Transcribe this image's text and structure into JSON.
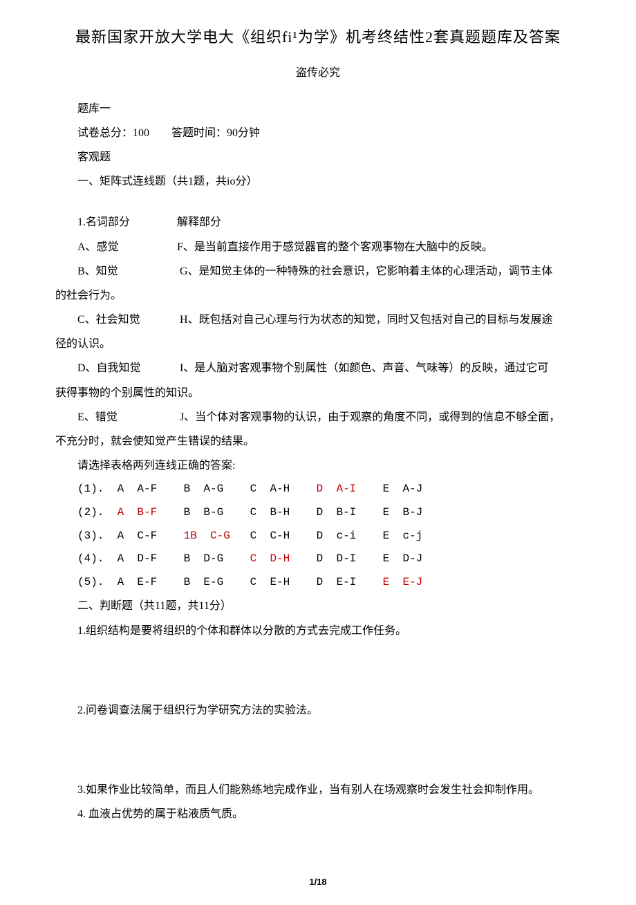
{
  "colors": {
    "text": "#000000",
    "background": "#ffffff",
    "answer_red": "#c00000"
  },
  "typography": {
    "body_font": "SimSun",
    "body_size_pt": 12,
    "title_size_pt": 16,
    "mono_font": "Courier New"
  },
  "page": {
    "number": "1/18"
  },
  "header": {
    "title": "最新国家开放大学电大《组织fi¹为学》机考终结性2套真题题库及答案",
    "subtitle": "盗传必究"
  },
  "meta": {
    "bank_label": "题库一",
    "score_line": "试卷总分：100　　答题时间：90分钟",
    "objective_label": "客观题"
  },
  "section1": {
    "heading": "一、矩阵式连线题（共1题，共io分）",
    "header_row": {
      "left": "1.名词部分",
      "right": "解释部分"
    },
    "rows": [
      {
        "left": "A、感觉",
        "right": "F、是当前直接作用于感觉器官的整个客观事物在大脑中的反映。"
      },
      {
        "left": "B、知觉",
        "right_first": "G、是知觉主体的一种特殊的社会意识，它影响着主体的心理活动，调节主体",
        "right_rest": "的社会行为。"
      },
      {
        "left": "C、社会知觉",
        "right_first": "H、既包括对自己心理与行为状态的知觉，同时又包括对自己的目标与发展途",
        "right_rest": "径的认识。"
      },
      {
        "left": "D、自我知觉",
        "right_first": "I、是人脑对客观事物个别属性（如颜色、声音、气味等）的反映，通过它可",
        "right_rest": "获得事物的个别属性的知识。"
      },
      {
        "left": "E、错觉",
        "right_first": "J、当个体对客观事物的认识，由于观察的角度不同，或得到的信息不够全面，",
        "right_rest": "不充分时，就会使知觉产生错误的结果。"
      }
    ],
    "prompt": "请选择表格两列连线正确的答案:",
    "answers": {
      "rows": [
        {
          "num": "(1).",
          "cells": [
            {
              "t": "A  A-F",
              "r": false
            },
            {
              "t": "B  A-G",
              "r": false
            },
            {
              "t": "C  A-H",
              "r": false
            },
            {
              "t": "D  A-I",
              "r": true
            },
            {
              "t": "E  A-J",
              "r": false
            }
          ]
        },
        {
          "num": "(2).",
          "cells": [
            {
              "t": "A  B-F",
              "r": true
            },
            {
              "t": "B  B-G",
              "r": false
            },
            {
              "t": "C  B-H",
              "r": false
            },
            {
              "t": "D  B-I",
              "r": false
            },
            {
              "t": "E  B-J",
              "r": false
            }
          ]
        },
        {
          "num": "(3).",
          "cells": [
            {
              "t": "A  C-F",
              "r": false
            },
            {
              "t": "1B  C-G",
              "r": true
            },
            {
              "t": "C  C-H",
              "r": false
            },
            {
              "t": "D  c-i",
              "r": false
            },
            {
              "t": "E  c-j",
              "r": false
            }
          ]
        },
        {
          "num": "(4).",
          "cells": [
            {
              "t": "A  D-F",
              "r": false
            },
            {
              "t": "B  D-G",
              "r": false
            },
            {
              "t": "C  D-H",
              "r": true
            },
            {
              "t": "D  D-I",
              "r": false
            },
            {
              "t": "E  D-J",
              "r": false
            }
          ]
        },
        {
          "num": "(5).",
          "cells": [
            {
              "t": "A  E-F",
              "r": false
            },
            {
              "t": "B  E-G",
              "r": false
            },
            {
              "t": "C  E-H",
              "r": false
            },
            {
              "t": "D  E-I",
              "r": false
            },
            {
              "t": "E  E-J",
              "r": true
            }
          ]
        }
      ],
      "col_width_chars": 10
    }
  },
  "section2": {
    "heading": "二、判断题（共11题，共11分）",
    "questions": [
      "1.组织结构是要将组织的个体和群体以分散的方式去完成工作任务。",
      "2.问卷调查法属于组织行为学研究方法的实验法。",
      "3.如果作业比较简单，而且人们能熟练地完成作业，当有别人在场观察时会发生社会抑制作用。",
      "4. 血液占优势的属于粘液质气质。"
    ]
  }
}
